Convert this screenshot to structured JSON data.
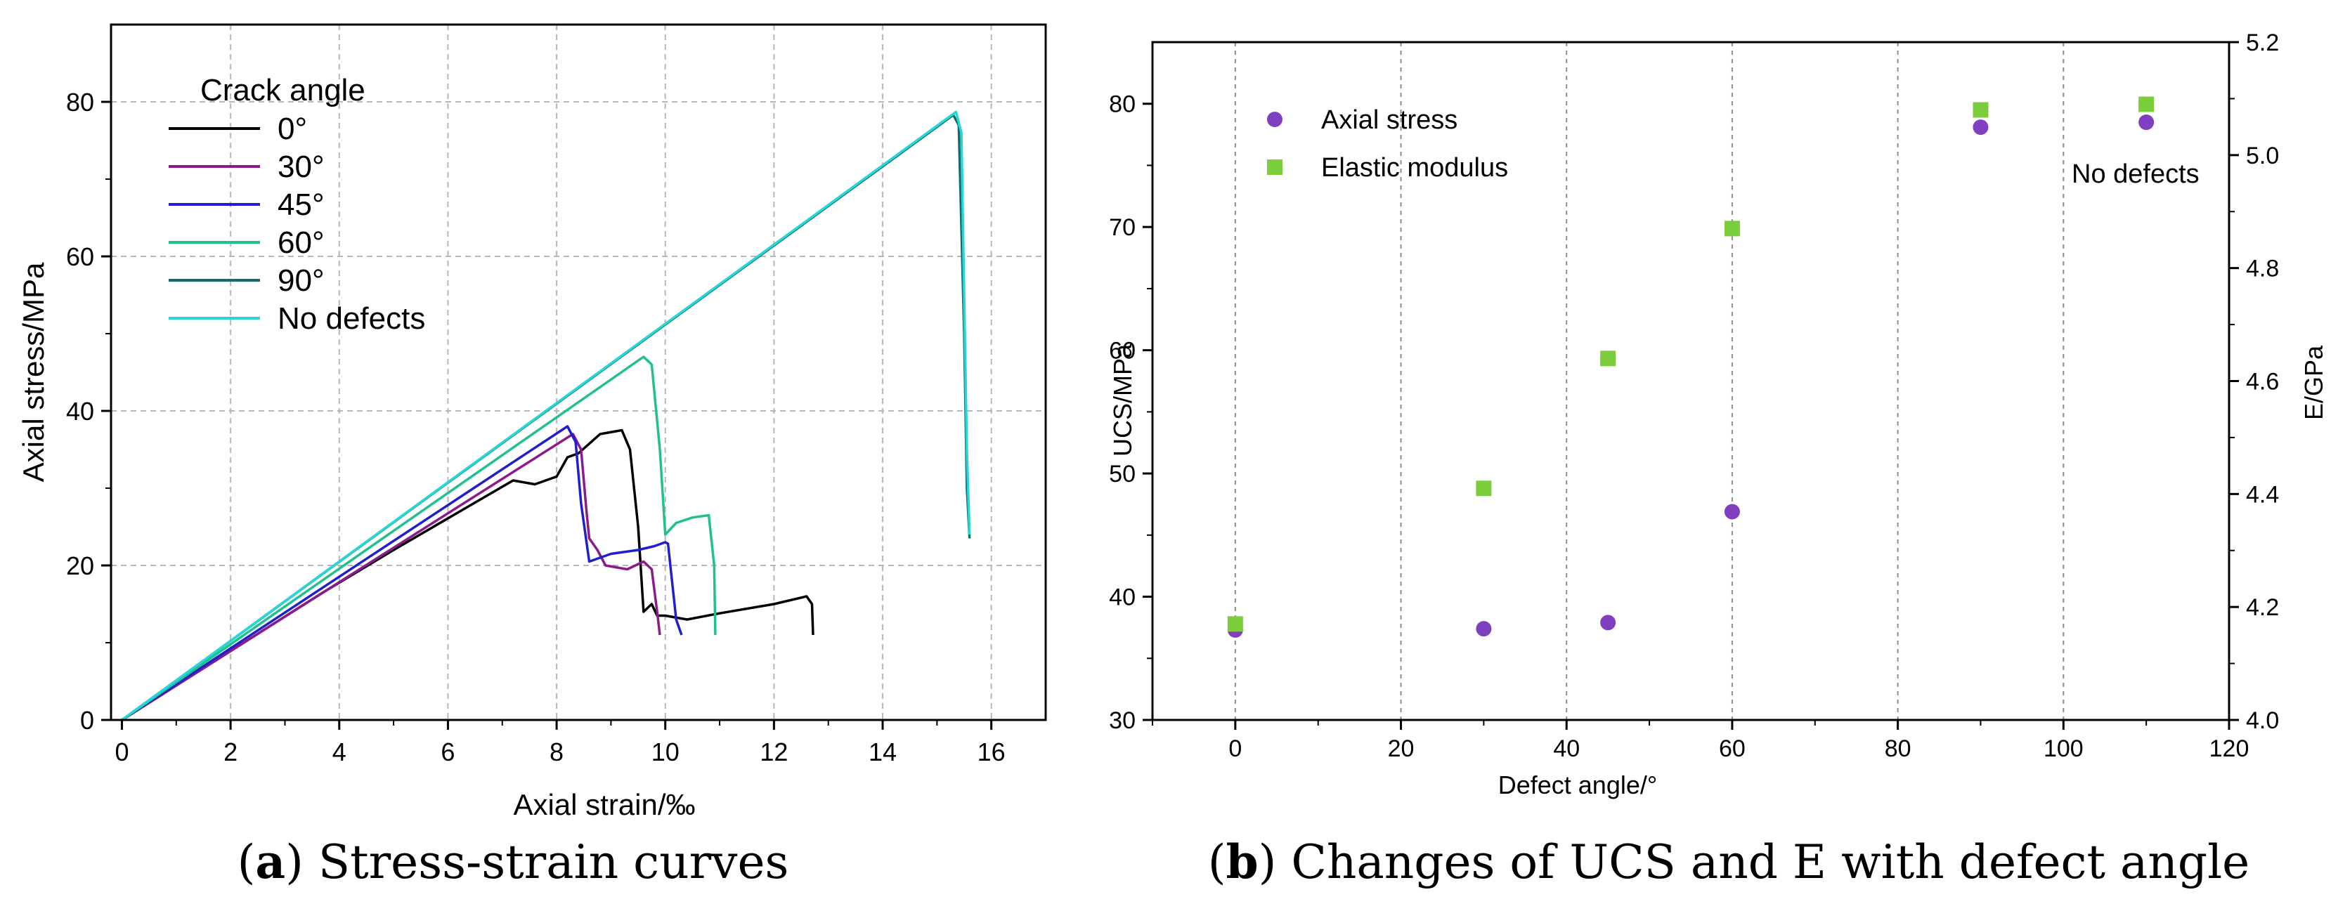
{
  "figure": {
    "panel_a": {
      "letter": "a",
      "caption": "Stress-strain curves"
    },
    "panel_b": {
      "letter": "b",
      "caption": "Changes of UCS and E with defect angle"
    }
  },
  "chart_data": [
    {
      "type": "line",
      "xlabel": "Axial strain/‰",
      "ylabel": "Axial stress/MPa",
      "xlim": [
        -0.2,
        17
      ],
      "ylim": [
        0,
        90
      ],
      "xticks": [
        0,
        2,
        4,
        6,
        8,
        10,
        12,
        14,
        16
      ],
      "yticks": [
        0,
        20,
        40,
        60,
        80
      ],
      "grid": true,
      "legend": {
        "title": "Crack angle",
        "placement": "top-left"
      },
      "series": [
        {
          "name": "0°",
          "color": "#000000",
          "x": [
            0,
            3.7,
            5,
            7.2,
            7.6,
            8.0,
            8.2,
            8.4,
            8.8,
            9.2,
            9.35,
            9.5,
            9.6,
            9.75,
            9.85,
            10.0,
            10.4,
            11.0,
            12.0,
            12.6,
            12.7,
            12.72
          ],
          "y": [
            0,
            16.5,
            22,
            31,
            30.5,
            31.5,
            34,
            34.5,
            37,
            37.5,
            35,
            25,
            14,
            15,
            13.5,
            13.5,
            13,
            13.8,
            15,
            16,
            15,
            11
          ]
        },
        {
          "name": "30°",
          "color": "#8b1a8b",
          "x": [
            0,
            8.3,
            8.45,
            8.55,
            8.6,
            8.75,
            8.9,
            9.3,
            9.6,
            9.75,
            9.85,
            9.9
          ],
          "y": [
            0,
            37,
            35,
            27,
            23.5,
            22,
            20,
            19.5,
            20.5,
            19.5,
            14,
            11
          ]
        },
        {
          "name": "45°",
          "color": "#1f1fcc",
          "x": [
            0,
            8.2,
            8.35,
            8.45,
            8.6,
            9.0,
            9.5,
            9.8,
            10.0,
            10.05,
            10.2,
            10.3
          ],
          "y": [
            0,
            38,
            36,
            28,
            20.5,
            21.5,
            22,
            22.5,
            23,
            22.8,
            13,
            11
          ]
        },
        {
          "name": "60°",
          "color": "#20c090",
          "x": [
            0,
            9.6,
            9.75,
            9.9,
            10.0,
            10.2,
            10.5,
            10.8,
            10.9,
            10.92
          ],
          "y": [
            0,
            47,
            46,
            35,
            24,
            25.5,
            26.2,
            26.5,
            20,
            11
          ]
        },
        {
          "name": "90°",
          "color": "#0e6e6e",
          "x": [
            0,
            15.3,
            15.4,
            15.5,
            15.55,
            15.6
          ],
          "y": [
            0,
            78.3,
            77,
            50,
            30,
            23.5
          ]
        },
        {
          "name": "No defects",
          "color": "#27d6d6",
          "x": [
            0,
            15.35,
            15.45,
            15.5,
            15.55,
            15.6
          ],
          "y": [
            0,
            78.7,
            76,
            55,
            35,
            24
          ]
        }
      ]
    },
    {
      "type": "scatter",
      "xlabel": "Defect angle/°",
      "ylabel": "UCS/MPa",
      "ylabel_right": "E/GPa",
      "xlim": [
        -10,
        120
      ],
      "ylim": [
        30,
        85
      ],
      "ylim_right": [
        4.0,
        5.2
      ],
      "xticks": [
        0,
        20,
        40,
        60,
        80,
        100,
        120
      ],
      "xtick_labels": [
        "0",
        "20",
        "40",
        "60",
        "80",
        "100",
        "120"
      ],
      "yticks": [
        30,
        40,
        50,
        60,
        70,
        80
      ],
      "yticks_right": [
        4.0,
        4.2,
        4.4,
        4.6,
        4.8,
        5.0,
        5.2
      ],
      "grid": "vertical dashed",
      "legend": {
        "placement": "top-left"
      },
      "annotation": "No defects",
      "series": [
        {
          "name": "Axial stress",
          "marker": "circle",
          "color": "#7f3fbf",
          "axis": "left",
          "x": [
            0,
            30,
            45,
            60,
            90,
            110
          ],
          "y": [
            37.3,
            37.4,
            37.9,
            46.9,
            78.1,
            78.5
          ]
        },
        {
          "name": "Elastic modulus",
          "marker": "square",
          "color": "#7ccd3c",
          "axis": "right",
          "x": [
            0,
            30,
            45,
            60,
            90,
            110
          ],
          "y": [
            4.17,
            4.41,
            4.64,
            4.87,
            5.08,
            5.09
          ]
        }
      ]
    }
  ]
}
